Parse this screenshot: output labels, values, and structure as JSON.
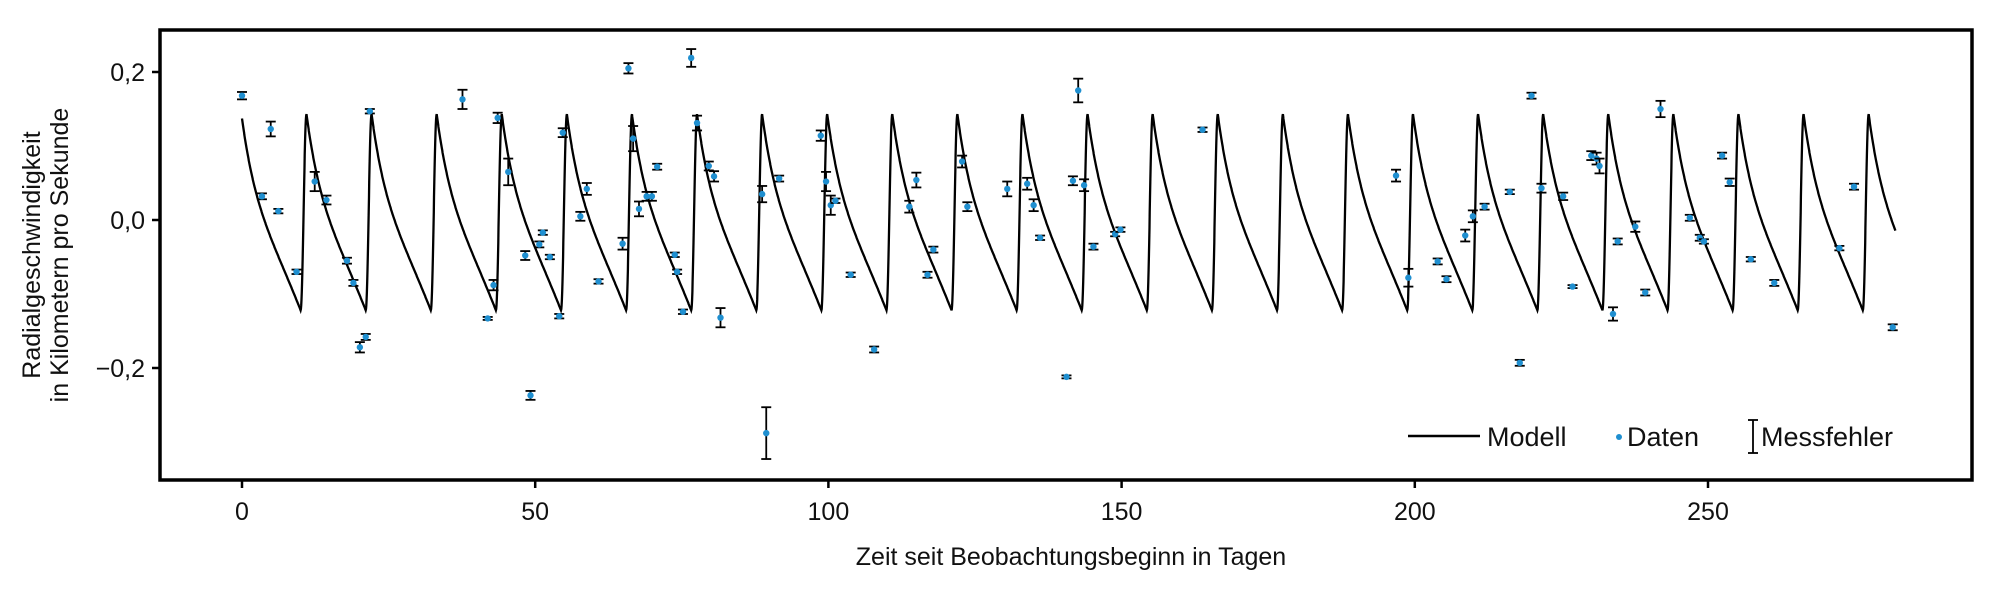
{
  "chart_data": {
    "type": "scatter",
    "title": "",
    "xlabel": "Zeit seit Beobachtungsbeginn in Tagen",
    "ylabel_lines": [
      "Radialgeschwindigkeit",
      "in Kilometern pro Sekunde"
    ],
    "xlim": [
      -14,
      296
    ],
    "ylim": [
      -0.35,
      0.26
    ],
    "xticks": [
      0,
      50,
      100,
      150,
      200,
      250
    ],
    "xtick_labels": [
      "0",
      "50",
      "100",
      "150",
      "200",
      "250"
    ],
    "yticks": [
      0.2,
      0.0,
      -0.2
    ],
    "ytick_labels": [
      "0,2",
      "0,0",
      "−0,2"
    ],
    "grid": false,
    "legend": {
      "position": "lower right",
      "entries": [
        "Modell",
        "Daten",
        "Messfehler"
      ]
    },
    "colors": {
      "model": "#000000",
      "data": "#1f8fd0",
      "errorbar": "#000000",
      "frame": "#000000"
    },
    "model": {
      "name": "Modell",
      "description": "periodic eccentric orbit radial velocity curve",
      "period_days": 11.1,
      "max": 0.143,
      "min": -0.122,
      "x_range": [
        0,
        282
      ]
    },
    "series": [
      {
        "name": "Daten",
        "points": [
          {
            "x": 0,
            "y": 0.168,
            "err": 0.005
          },
          {
            "x": 3.4,
            "y": 0.032,
            "err": 0.004
          },
          {
            "x": 4.9,
            "y": 0.123,
            "err": 0.01
          },
          {
            "x": 6.2,
            "y": 0.012,
            "err": 0.003
          },
          {
            "x": 9.3,
            "y": -0.07,
            "err": 0.003
          },
          {
            "x": 12.4,
            "y": 0.052,
            "err": 0.013
          },
          {
            "x": 14.4,
            "y": 0.027,
            "err": 0.006
          },
          {
            "x": 17.9,
            "y": -0.055,
            "err": 0.004
          },
          {
            "x": 19.0,
            "y": -0.085,
            "err": 0.004
          },
          {
            "x": 20.1,
            "y": -0.172,
            "err": 0.007
          },
          {
            "x": 21.1,
            "y": -0.158,
            "err": 0.004
          },
          {
            "x": 21.8,
            "y": 0.147,
            "err": 0.003
          },
          {
            "x": 37.6,
            "y": 0.163,
            "err": 0.013
          },
          {
            "x": 41.9,
            "y": -0.133,
            "err": 0.002
          },
          {
            "x": 42.9,
            "y": -0.088,
            "err": 0.007
          },
          {
            "x": 43.6,
            "y": 0.138,
            "err": 0.007
          },
          {
            "x": 45.4,
            "y": 0.065,
            "err": 0.018
          },
          {
            "x": 48.3,
            "y": -0.048,
            "err": 0.006
          },
          {
            "x": 49.2,
            "y": -0.237,
            "err": 0.006
          },
          {
            "x": 50.7,
            "y": -0.033,
            "err": 0.004
          },
          {
            "x": 51.3,
            "y": -0.017,
            "err": 0.003
          },
          {
            "x": 52.5,
            "y": -0.05,
            "err": 0.003
          },
          {
            "x": 54.1,
            "y": -0.13,
            "err": 0.003
          },
          {
            "x": 54.7,
            "y": 0.118,
            "err": 0.006
          },
          {
            "x": 57.7,
            "y": 0.005,
            "err": 0.006
          },
          {
            "x": 58.8,
            "y": 0.042,
            "err": 0.008
          },
          {
            "x": 60.8,
            "y": -0.083,
            "err": 0.003
          },
          {
            "x": 64.9,
            "y": -0.032,
            "err": 0.008
          },
          {
            "x": 65.9,
            "y": 0.205,
            "err": 0.007
          },
          {
            "x": 66.7,
            "y": 0.11,
            "err": 0.017
          },
          {
            "x": 67.7,
            "y": 0.015,
            "err": 0.01
          },
          {
            "x": 69.0,
            "y": 0.032,
            "err": 0.006
          },
          {
            "x": 69.9,
            "y": 0.032,
            "err": 0.006
          },
          {
            "x": 70.8,
            "y": 0.072,
            "err": 0.004
          },
          {
            "x": 73.8,
            "y": -0.047,
            "err": 0.003
          },
          {
            "x": 74.2,
            "y": -0.07,
            "err": 0.003
          },
          {
            "x": 75.2,
            "y": -0.124,
            "err": 0.003
          },
          {
            "x": 76.6,
            "y": 0.219,
            "err": 0.012
          },
          {
            "x": 77.6,
            "y": 0.131,
            "err": 0.01
          },
          {
            "x": 79.6,
            "y": 0.073,
            "err": 0.006
          },
          {
            "x": 80.5,
            "y": 0.059,
            "err": 0.007
          },
          {
            "x": 81.6,
            "y": -0.132,
            "err": 0.013
          },
          {
            "x": 88.7,
            "y": 0.035,
            "err": 0.011
          },
          {
            "x": 89.4,
            "y": -0.288,
            "err": 0.035
          },
          {
            "x": 91.6,
            "y": 0.056,
            "err": 0.004
          },
          {
            "x": 98.7,
            "y": 0.114,
            "err": 0.007
          },
          {
            "x": 99.6,
            "y": 0.052,
            "err": 0.013
          },
          {
            "x": 100.4,
            "y": 0.02,
            "err": 0.013
          },
          {
            "x": 101.2,
            "y": 0.026,
            "err": 0.003
          },
          {
            "x": 103.8,
            "y": -0.074,
            "err": 0.003
          },
          {
            "x": 107.8,
            "y": -0.175,
            "err": 0.004
          },
          {
            "x": 113.8,
            "y": 0.018,
            "err": 0.008
          },
          {
            "x": 115.0,
            "y": 0.054,
            "err": 0.01
          },
          {
            "x": 116.9,
            "y": -0.074,
            "err": 0.004
          },
          {
            "x": 117.9,
            "y": -0.04,
            "err": 0.004
          },
          {
            "x": 122.8,
            "y": 0.079,
            "err": 0.008
          },
          {
            "x": 123.7,
            "y": 0.018,
            "err": 0.006
          },
          {
            "x": 130.5,
            "y": 0.042,
            "err": 0.01
          },
          {
            "x": 133.9,
            "y": 0.049,
            "err": 0.008
          },
          {
            "x": 135.0,
            "y": 0.02,
            "err": 0.008
          },
          {
            "x": 136.1,
            "y": -0.024,
            "err": 0.003
          },
          {
            "x": 140.6,
            "y": -0.212,
            "err": 0.002
          },
          {
            "x": 141.7,
            "y": 0.053,
            "err": 0.006
          },
          {
            "x": 142.6,
            "y": 0.175,
            "err": 0.016
          },
          {
            "x": 143.6,
            "y": 0.047,
            "err": 0.008
          },
          {
            "x": 145.2,
            "y": -0.036,
            "err": 0.004
          },
          {
            "x": 148.9,
            "y": -0.019,
            "err": 0.003
          },
          {
            "x": 149.8,
            "y": -0.013,
            "err": 0.003
          },
          {
            "x": 163.8,
            "y": 0.122,
            "err": 0.003
          },
          {
            "x": 196.8,
            "y": 0.06,
            "err": 0.008
          },
          {
            "x": 198.9,
            "y": -0.078,
            "err": 0.012
          },
          {
            "x": 203.9,
            "y": -0.056,
            "err": 0.004
          },
          {
            "x": 205.4,
            "y": -0.08,
            "err": 0.004
          },
          {
            "x": 208.6,
            "y": -0.021,
            "err": 0.008
          },
          {
            "x": 209.9,
            "y": 0.005,
            "err": 0.008
          },
          {
            "x": 211.9,
            "y": 0.018,
            "err": 0.004
          },
          {
            "x": 216.2,
            "y": 0.038,
            "err": 0.003
          },
          {
            "x": 217.9,
            "y": -0.193,
            "err": 0.004
          },
          {
            "x": 219.9,
            "y": 0.168,
            "err": 0.004
          },
          {
            "x": 221.6,
            "y": 0.043,
            "err": 0.006
          },
          {
            "x": 225.3,
            "y": 0.032,
            "err": 0.005
          },
          {
            "x": 226.9,
            "y": -0.09,
            "err": 0.002
          },
          {
            "x": 230.1,
            "y": 0.087,
            "err": 0.006
          },
          {
            "x": 231.0,
            "y": 0.083,
            "err": 0.008
          },
          {
            "x": 231.5,
            "y": 0.073,
            "err": 0.01
          },
          {
            "x": 233.8,
            "y": -0.127,
            "err": 0.009
          },
          {
            "x": 234.6,
            "y": -0.029,
            "err": 0.004
          },
          {
            "x": 237.6,
            "y": -0.009,
            "err": 0.007
          },
          {
            "x": 239.3,
            "y": -0.098,
            "err": 0.004
          },
          {
            "x": 241.9,
            "y": 0.15,
            "err": 0.011
          },
          {
            "x": 246.9,
            "y": 0.003,
            "err": 0.004
          },
          {
            "x": 248.6,
            "y": -0.024,
            "err": 0.004
          },
          {
            "x": 249.3,
            "y": -0.029,
            "err": 0.003
          },
          {
            "x": 252.4,
            "y": 0.087,
            "err": 0.004
          },
          {
            "x": 253.7,
            "y": 0.051,
            "err": 0.005
          },
          {
            "x": 257.3,
            "y": -0.053,
            "err": 0.003
          },
          {
            "x": 261.3,
            "y": -0.085,
            "err": 0.004
          },
          {
            "x": 272.4,
            "y": -0.038,
            "err": 0.003
          },
          {
            "x": 274.9,
            "y": 0.045,
            "err": 0.004
          },
          {
            "x": 281.5,
            "y": -0.145,
            "err": 0.004
          }
        ]
      }
    ]
  },
  "legend": {
    "model_label": "Modell",
    "data_label": "Daten",
    "error_label": "Messfehler"
  },
  "axes": {
    "xlabel": "Zeit seit Beobachtungsbeginn in Tagen",
    "ylabel_line1": "Radialgeschwindigkeit",
    "ylabel_line2": "in Kilometern pro Sekunde"
  }
}
